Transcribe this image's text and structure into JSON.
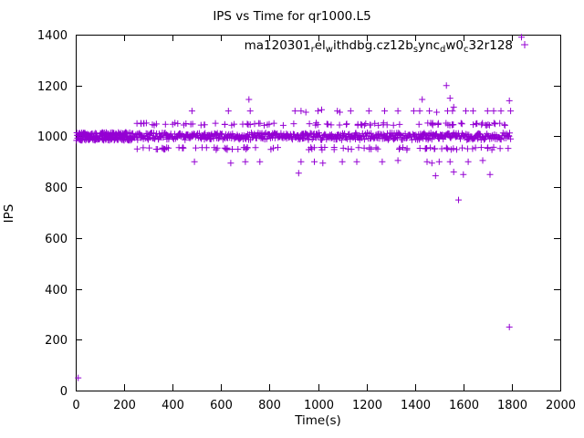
{
  "chart_data": {
    "type": "scatter",
    "title": "IPS vs Time for qr1000.L5",
    "xlabel": "Time(s)",
    "ylabel": "IPS",
    "xlim": [
      0,
      2000
    ],
    "ylim": [
      0,
      1400
    ],
    "xticks": [
      0,
      200,
      400,
      600,
      800,
      1000,
      1200,
      1400,
      1600,
      1800,
      2000
    ],
    "yticks": [
      0,
      200,
      400,
      600,
      800,
      1000,
      1200,
      1400
    ],
    "marker": "+",
    "color": "#9400D3",
    "axis_color": "#000000",
    "grid": false,
    "legend_position": "top-center-inside",
    "legend_label_plain": "ma120301_rel_withdbg.cz12b_sync_dw0_c32r128",
    "legend_segments": [
      {
        "t": "ma120301",
        "sub": false
      },
      {
        "t": "r",
        "sub": true
      },
      {
        "t": "el",
        "sub": false
      },
      {
        "t": "w",
        "sub": true
      },
      {
        "t": "ithdbg.cz12b",
        "sub": false
      },
      {
        "t": "s",
        "sub": true
      },
      {
        "t": "ync",
        "sub": false
      },
      {
        "t": "d",
        "sub": true
      },
      {
        "t": "w0",
        "sub": false
      },
      {
        "t": "c",
        "sub": true
      },
      {
        "t": "32r128",
        "sub": false
      }
    ],
    "bands": [
      {
        "y": 1000,
        "x0": 3,
        "x1": 232,
        "count": 170,
        "spread": 16,
        "mode": "solid"
      },
      {
        "y": 1000,
        "x0": 232,
        "x1": 1795,
        "count": 400,
        "spread": 14,
        "mode": "solid"
      },
      {
        "y": 1000,
        "x0": 240,
        "x1": 1795,
        "count": 130,
        "spread": 12,
        "mode": "scatter"
      },
      {
        "y": 1048,
        "x0": 238,
        "x1": 1785,
        "count": 95,
        "spread": 5,
        "mode": "scatter"
      },
      {
        "y": 952,
        "x0": 250,
        "x1": 1790,
        "count": 85,
        "spread": 5,
        "mode": "scatter"
      }
    ],
    "points": [
      [
        480,
        1100
      ],
      [
        630,
        1100
      ],
      [
        715,
        1145
      ],
      [
        720,
        1100
      ],
      [
        905,
        1100
      ],
      [
        930,
        1100
      ],
      [
        950,
        1095
      ],
      [
        1000,
        1100
      ],
      [
        1015,
        1105
      ],
      [
        1080,
        1100
      ],
      [
        1090,
        1095
      ],
      [
        1135,
        1100
      ],
      [
        1210,
        1100
      ],
      [
        1275,
        1100
      ],
      [
        1330,
        1100
      ],
      [
        1395,
        1100
      ],
      [
        1420,
        1100
      ],
      [
        1430,
        1145
      ],
      [
        1460,
        1100
      ],
      [
        1490,
        1095
      ],
      [
        1530,
        1200
      ],
      [
        1535,
        1100
      ],
      [
        1545,
        1150
      ],
      [
        1555,
        1100
      ],
      [
        1560,
        1115
      ],
      [
        1610,
        1100
      ],
      [
        1640,
        1100
      ],
      [
        1700,
        1100
      ],
      [
        1725,
        1100
      ],
      [
        1755,
        1100
      ],
      [
        1790,
        1140
      ],
      [
        1795,
        1100
      ],
      [
        1840,
        1390
      ],
      [
        10,
        50
      ],
      [
        490,
        900
      ],
      [
        640,
        895
      ],
      [
        700,
        900
      ],
      [
        760,
        900
      ],
      [
        920,
        855
      ],
      [
        930,
        900
      ],
      [
        985,
        900
      ],
      [
        1020,
        895
      ],
      [
        1100,
        900
      ],
      [
        1160,
        900
      ],
      [
        1265,
        900
      ],
      [
        1330,
        905
      ],
      [
        1450,
        900
      ],
      [
        1470,
        895
      ],
      [
        1485,
        845
      ],
      [
        1500,
        900
      ],
      [
        1545,
        900
      ],
      [
        1560,
        860
      ],
      [
        1580,
        750
      ],
      [
        1600,
        850
      ],
      [
        1620,
        900
      ],
      [
        1680,
        905
      ],
      [
        1710,
        850
      ],
      [
        1790,
        250
      ]
    ]
  }
}
